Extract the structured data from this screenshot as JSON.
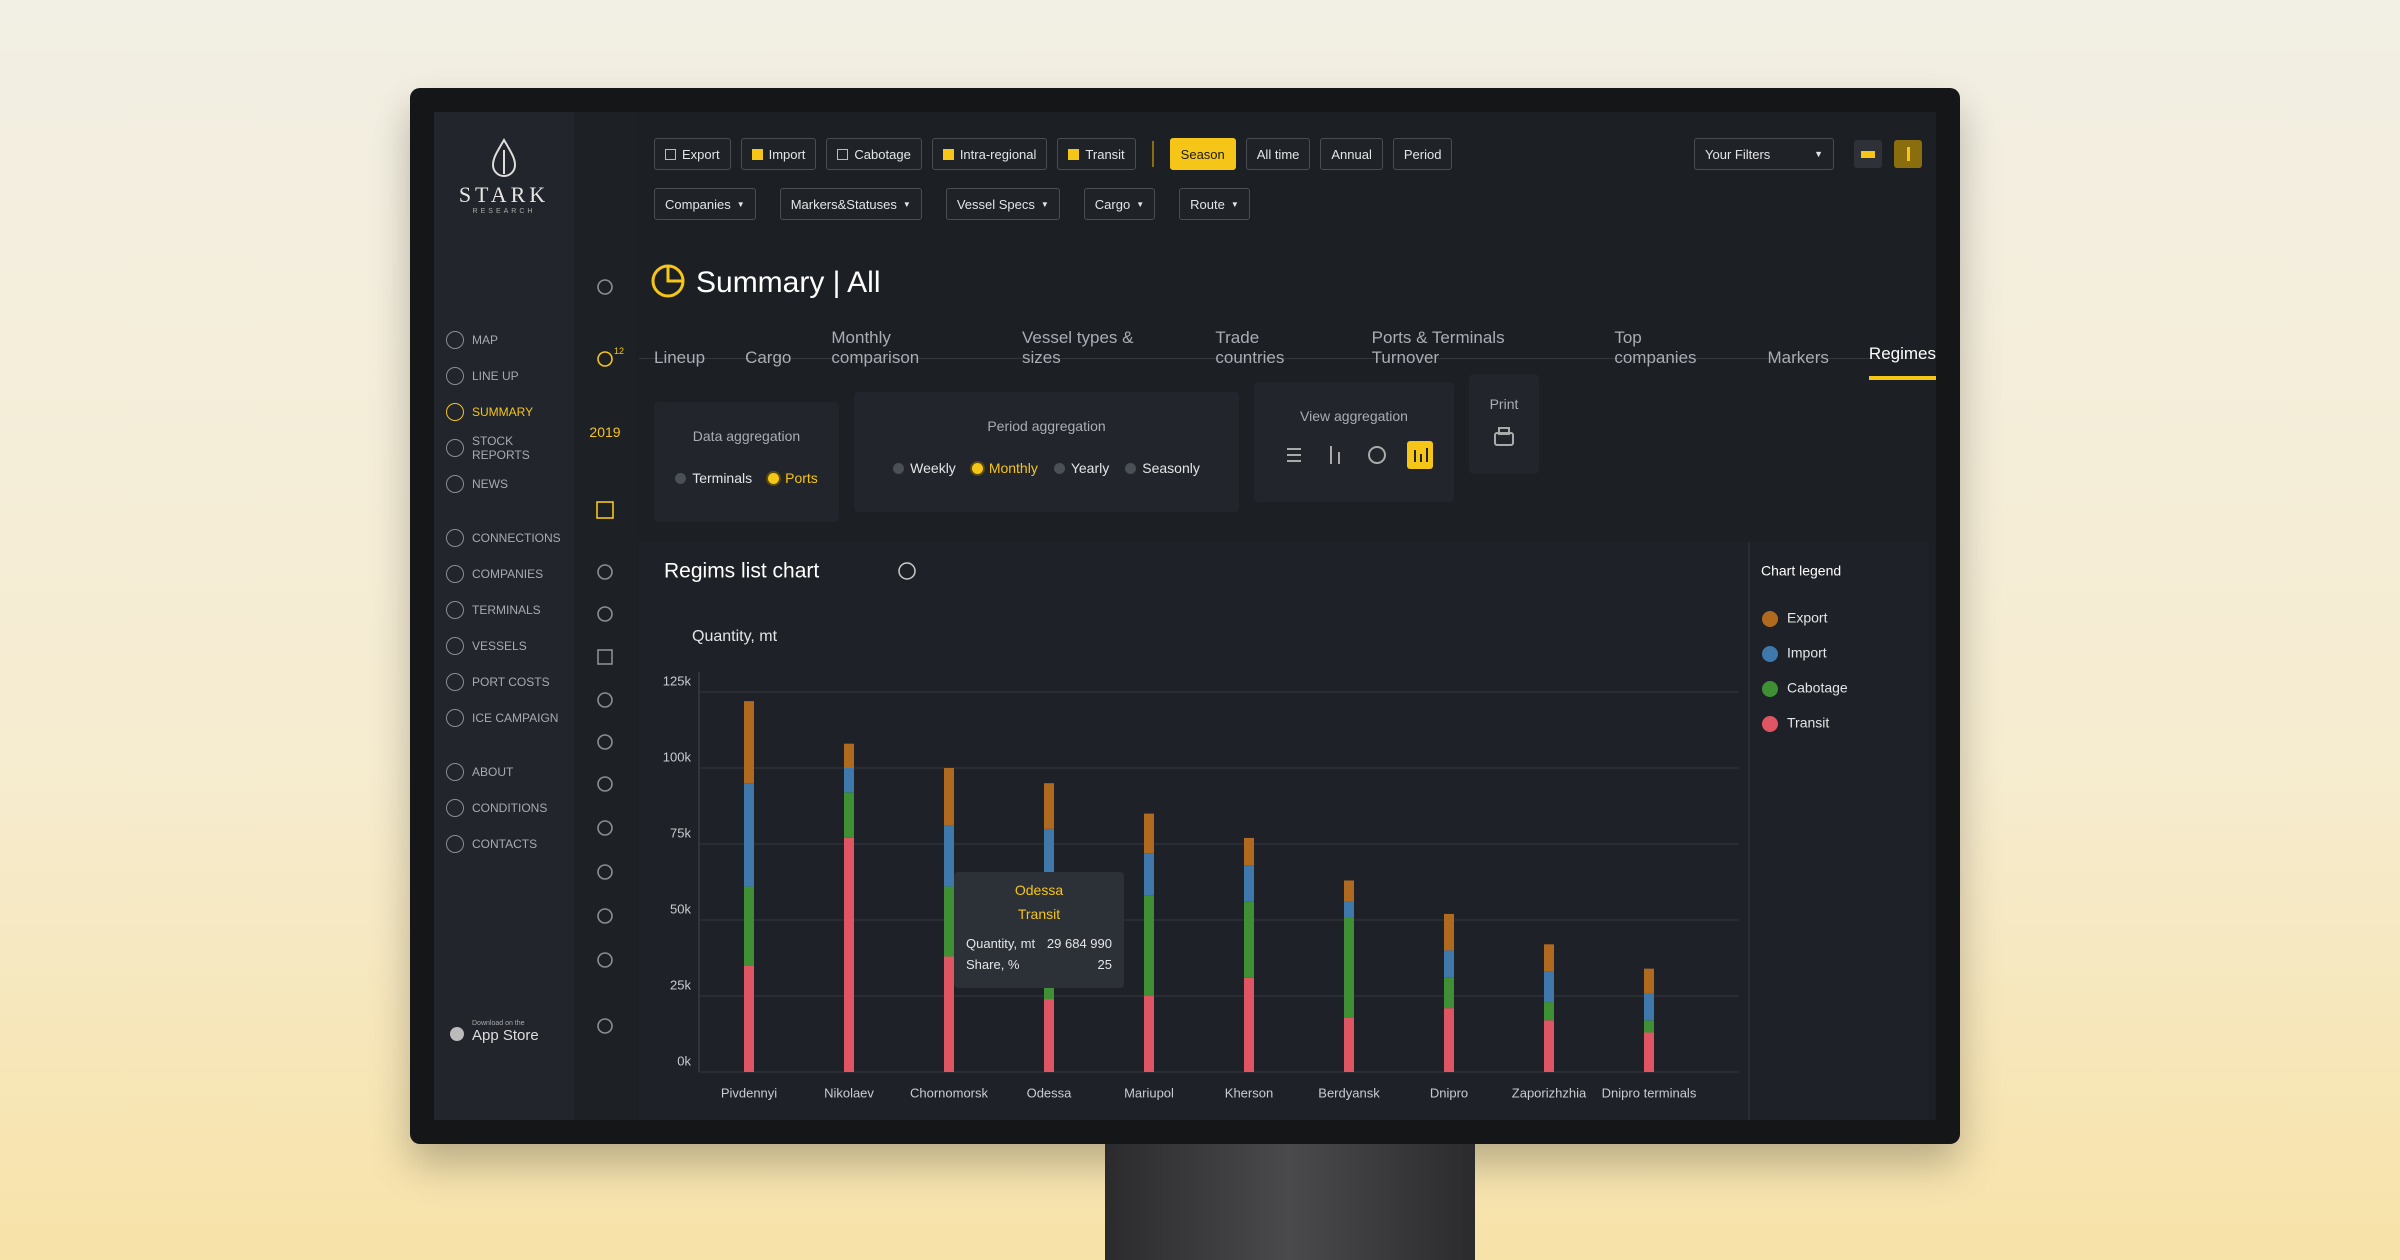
{
  "filters": {
    "checkboxes": [
      {
        "label": "Export",
        "checked": false
      },
      {
        "label": "Import",
        "checked": true
      },
      {
        "label": "Cabotage",
        "checked": false
      },
      {
        "label": "Intra-regional",
        "checked": true
      },
      {
        "label": "Transit",
        "checked": true
      }
    ],
    "periods": [
      {
        "label": "Season",
        "active": true
      },
      {
        "label": "All time",
        "active": false
      },
      {
        "label": "Annual",
        "active": false
      },
      {
        "label": "Period",
        "active": false
      }
    ],
    "dropdowns": [
      "Companies",
      "Markers&Statuses",
      "Vessel Specs",
      "Cargo",
      "Route"
    ],
    "your_filters": "Your Filters"
  },
  "sidebar": {
    "brand": "STARK",
    "brand_sub": "RESEARCH",
    "groups": [
      [
        {
          "label": "MAP",
          "active": false
        },
        {
          "label": "LINE UP",
          "active": false
        },
        {
          "label": "SUMMARY",
          "active": true
        },
        {
          "label": "STOCK REPORTS",
          "active": false
        },
        {
          "label": "NEWS",
          "active": false
        }
      ],
      [
        {
          "label": "CONNECTIONS",
          "active": false
        },
        {
          "label": "COMPANIES",
          "active": false
        },
        {
          "label": "TERMINALS",
          "active": false
        },
        {
          "label": "VESSELS",
          "active": false
        },
        {
          "label": "PORT COSTS",
          "active": false
        },
        {
          "label": "ICE CAMPAIGN",
          "active": false
        }
      ],
      [
        {
          "label": "ABOUT",
          "active": false
        },
        {
          "label": "CONDITIONS",
          "active": false
        },
        {
          "label": "CONTACTS",
          "active": false
        }
      ]
    ],
    "app_store_small": "Download on the",
    "app_store": "App Store"
  },
  "icon_bar": {
    "badge": "12",
    "year": "2019"
  },
  "page": {
    "title": "Summary | All",
    "tabs": [
      {
        "label": "Lineup",
        "active": false
      },
      {
        "label": "Cargo",
        "active": false
      },
      {
        "label": "Monthly comparison",
        "active": false
      },
      {
        "label": "Vessel types & sizes",
        "active": false
      },
      {
        "label": "Trade countries",
        "active": false
      },
      {
        "label": "Ports & Terminals Turnover",
        "active": false
      },
      {
        "label": "Top companies",
        "active": false
      },
      {
        "label": "Markers",
        "active": false
      },
      {
        "label": "Regimes",
        "active": true
      }
    ]
  },
  "controls": {
    "data_aggregation": {
      "label": "Data aggregation",
      "options": [
        {
          "label": "Terminals",
          "selected": false
        },
        {
          "label": "Ports",
          "selected": true
        }
      ]
    },
    "period_aggregation": {
      "label": "Period aggregation",
      "options": [
        {
          "label": "Weekly",
          "selected": false
        },
        {
          "label": "Monthly",
          "selected": true
        },
        {
          "label": "Yearly",
          "selected": false
        },
        {
          "label": "Seasonly",
          "selected": false
        }
      ]
    },
    "view_aggregation": {
      "label": "View aggregation"
    },
    "print": {
      "label": "Print"
    }
  },
  "chart_data": {
    "type": "bar",
    "stacked": true,
    "title": "Regims list chart",
    "y_label": "Quantity, mt",
    "legend_title": "Chart legend",
    "legend": "right",
    "grid": true,
    "categories": [
      "Pivdennyi",
      "Nikolaev",
      "Chornomorsk",
      "Odessa",
      "Mariupol",
      "Kherson",
      "Berdyansk",
      "Dnipro",
      "Zaporizhzhia",
      "Dnipro terminals"
    ],
    "series": [
      {
        "name": "Export",
        "color": "#b06a1f",
        "values": [
          27000,
          8000,
          19000,
          15000,
          13000,
          9000,
          7000,
          12000,
          9000,
          8000
        ]
      },
      {
        "name": "Import",
        "color": "#3f78aa",
        "values": [
          34000,
          8000,
          20000,
          22000,
          14000,
          12000,
          5000,
          9000,
          10000,
          9000
        ]
      },
      {
        "name": "Cabotage",
        "color": "#3f8f35",
        "values": [
          26000,
          15000,
          23000,
          34000,
          33000,
          25000,
          33000,
          10000,
          6000,
          4000
        ]
      },
      {
        "name": "Transit",
        "color": "#e05563",
        "values": [
          35000,
          77000,
          38000,
          24000,
          25000,
          31000,
          18000,
          21000,
          17000,
          13000
        ]
      }
    ],
    "ylim": [
      0,
      125000
    ],
    "yticks": [
      {
        "value": 0,
        "label": "0k"
      },
      {
        "value": 25000,
        "label": "25k"
      },
      {
        "value": 50000,
        "label": "50k"
      },
      {
        "value": 75000,
        "label": "75k"
      },
      {
        "value": 100000,
        "label": "100k"
      },
      {
        "value": 125000,
        "label": "125k"
      }
    ]
  },
  "tooltip": {
    "rows": [
      [
        "Quantity, mt",
        "29 684 990"
      ],
      [
        "Share, %",
        "25"
      ]
    ]
  }
}
